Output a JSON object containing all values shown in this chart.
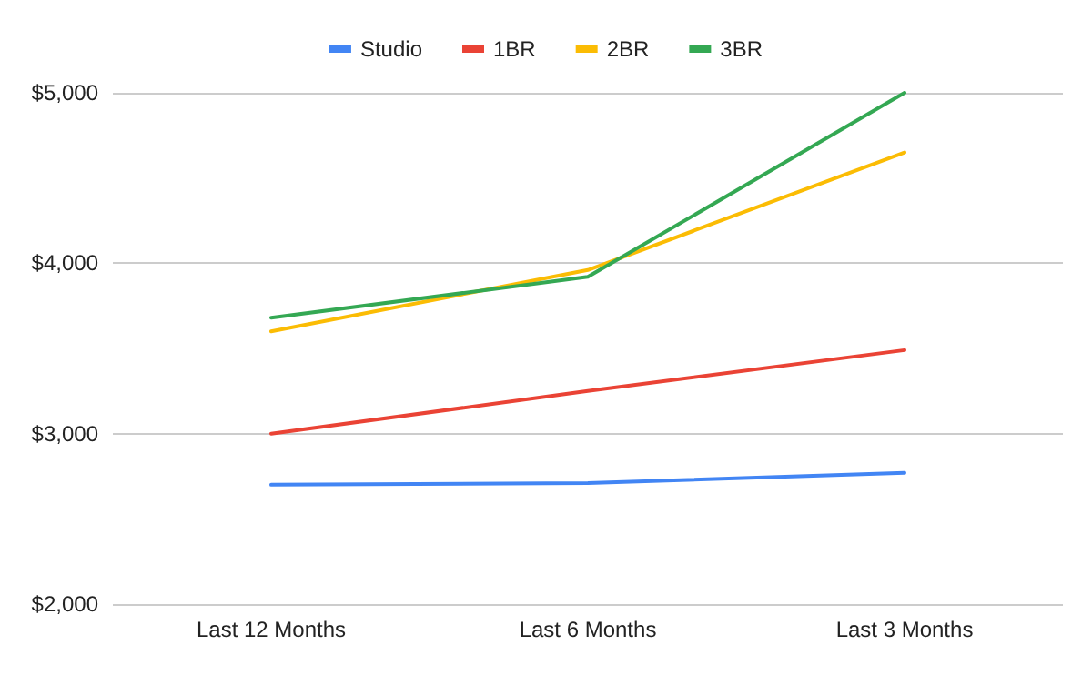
{
  "chart_data": {
    "type": "line",
    "categories": [
      "Last 12 Months",
      "Last 6 Months",
      "Last 3 Months"
    ],
    "series": [
      {
        "name": "Studio",
        "color": "#4285f4",
        "values": [
          2700,
          2710,
          2770
        ]
      },
      {
        "name": "1BR",
        "color": "#ea4335",
        "values": [
          3000,
          3250,
          3490
        ]
      },
      {
        "name": "2BR",
        "color": "#fbbc04",
        "values": [
          3600,
          3960,
          4650
        ]
      },
      {
        "name": "3BR",
        "color": "#34a853",
        "values": [
          3680,
          3920,
          5000
        ]
      }
    ],
    "ylim": [
      2000,
      5000
    ],
    "yticks": [
      {
        "value": 2000,
        "label": "$2,000"
      },
      {
        "value": 3000,
        "label": "$3,000"
      },
      {
        "value": 4000,
        "label": "$4,000"
      },
      {
        "value": 5000,
        "label": "$5,000"
      }
    ],
    "grid": "y",
    "legend": "top",
    "marker": "none",
    "line_style": "solid"
  }
}
